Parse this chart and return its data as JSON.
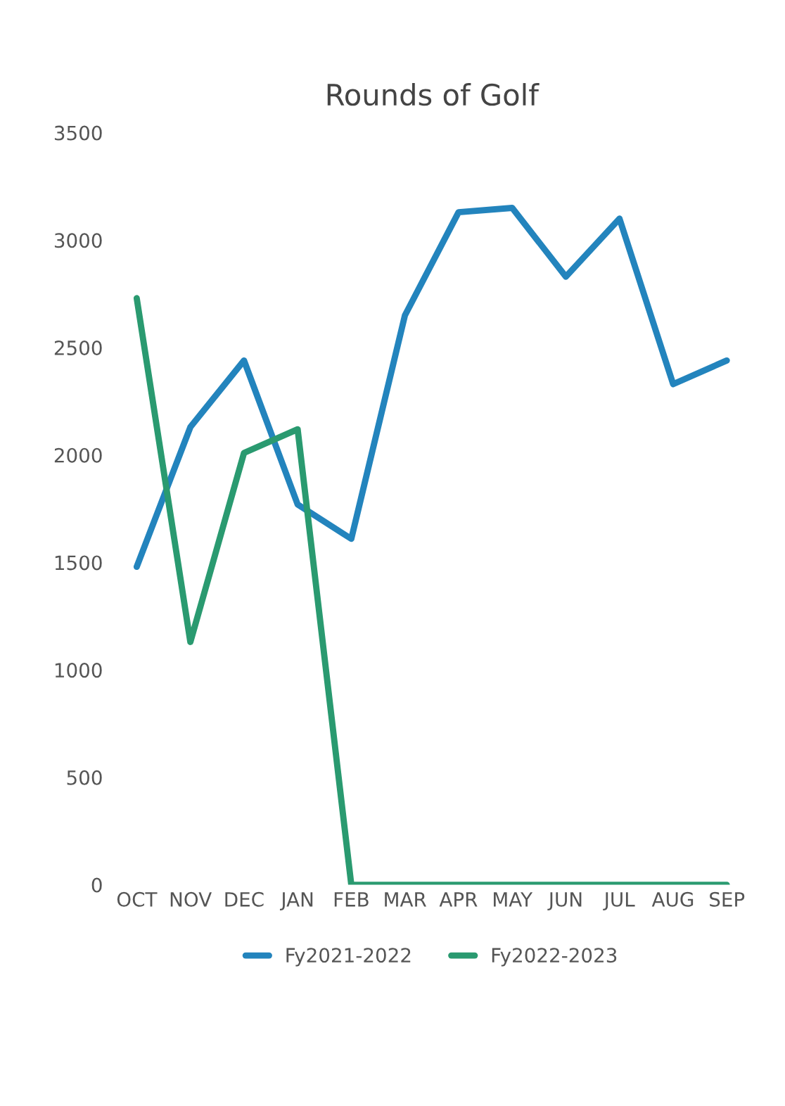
{
  "chart_data": {
    "type": "line",
    "title": "Rounds of Golf",
    "categories": [
      "OCT",
      "NOV",
      "DEC",
      "JAN",
      "FEB",
      "MAR",
      "APR",
      "MAY",
      "JUN",
      "JUL",
      "AUG",
      "SEP"
    ],
    "series": [
      {
        "name": "Fy2021-2022",
        "color": "#2384bd",
        "values": [
          1480,
          2130,
          2440,
          1770,
          1610,
          2650,
          3130,
          3150,
          2830,
          3100,
          2330,
          2440
        ]
      },
      {
        "name": "Fy2022-2023",
        "color": "#2a9a70",
        "values": [
          2730,
          1130,
          2010,
          2120,
          0,
          0,
          0,
          0,
          0,
          0,
          0,
          0
        ]
      }
    ],
    "ylim": [
      0,
      3500
    ],
    "yticks": [
      0,
      500,
      1000,
      1500,
      2000,
      2500,
      3000,
      3500
    ],
    "grid": false,
    "legend": "bottom",
    "line_style": "solid",
    "marker": "none"
  }
}
